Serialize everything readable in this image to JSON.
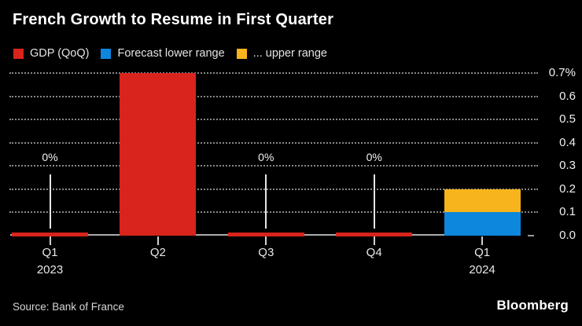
{
  "title": "French Growth to Resume in First Quarter",
  "legend": {
    "items": [
      {
        "label": "GDP (QoQ)",
        "color": "#d8241d"
      },
      {
        "label": "Forecast lower range",
        "color": "#0d86dd"
      },
      {
        "label": "... upper range",
        "color": "#f7b41c"
      }
    ]
  },
  "footer": {
    "source": "Source: Bank of France",
    "brand": "Bloomberg"
  },
  "colors": {
    "background": "#000000",
    "grid": "#878787",
    "axis_line": "#ababab",
    "annotation": "#e6e6e6",
    "text_primary": "#ffffff",
    "text_secondary": "#d6d6d6"
  },
  "chart_data": {
    "type": "bar",
    "title": "French Growth to Resume in First Quarter",
    "xlabel": "",
    "ylabel": "",
    "categories": [
      "Q1 2023",
      "Q2 2023",
      "Q3 2023",
      "Q4 2023",
      "Q1 2024"
    ],
    "category_labels": [
      {
        "line1": "Q1",
        "line2": "2023"
      },
      {
        "line1": "Q2",
        "line2": ""
      },
      {
        "line1": "Q3",
        "line2": ""
      },
      {
        "line1": "Q4",
        "line2": ""
      },
      {
        "line1": "Q1",
        "line2": "2024"
      }
    ],
    "series": [
      {
        "name": "GDP (QoQ)",
        "color": "#d8241d",
        "values": [
          0,
          0.7,
          0,
          0,
          null
        ]
      },
      {
        "name": "Forecast lower range",
        "color": "#0d86dd",
        "values": [
          null,
          null,
          null,
          null,
          0.1
        ]
      },
      {
        "name": "... upper range",
        "color": "#f7b41c",
        "stacked_on_previous": true,
        "values": [
          null,
          null,
          null,
          null,
          0.1
        ]
      }
    ],
    "annotations": [
      {
        "category_index": 0,
        "text": "0%"
      },
      {
        "category_index": 2,
        "text": "0%"
      },
      {
        "category_index": 3,
        "text": "0%"
      }
    ],
    "y_axis": {
      "side": "right",
      "ylim": [
        0,
        0.7
      ],
      "ticks": [
        0,
        0.1,
        0.2,
        0.3,
        0.4,
        0.5,
        0.6,
        0.7
      ],
      "tick_labels": [
        "0.0",
        "0.1",
        "0.2",
        "0.3",
        "0.4",
        "0.5",
        "0.6",
        "0.7%"
      ]
    },
    "grid": {
      "horizontal": "dotted",
      "vertical": false
    },
    "legend_position": "top"
  }
}
